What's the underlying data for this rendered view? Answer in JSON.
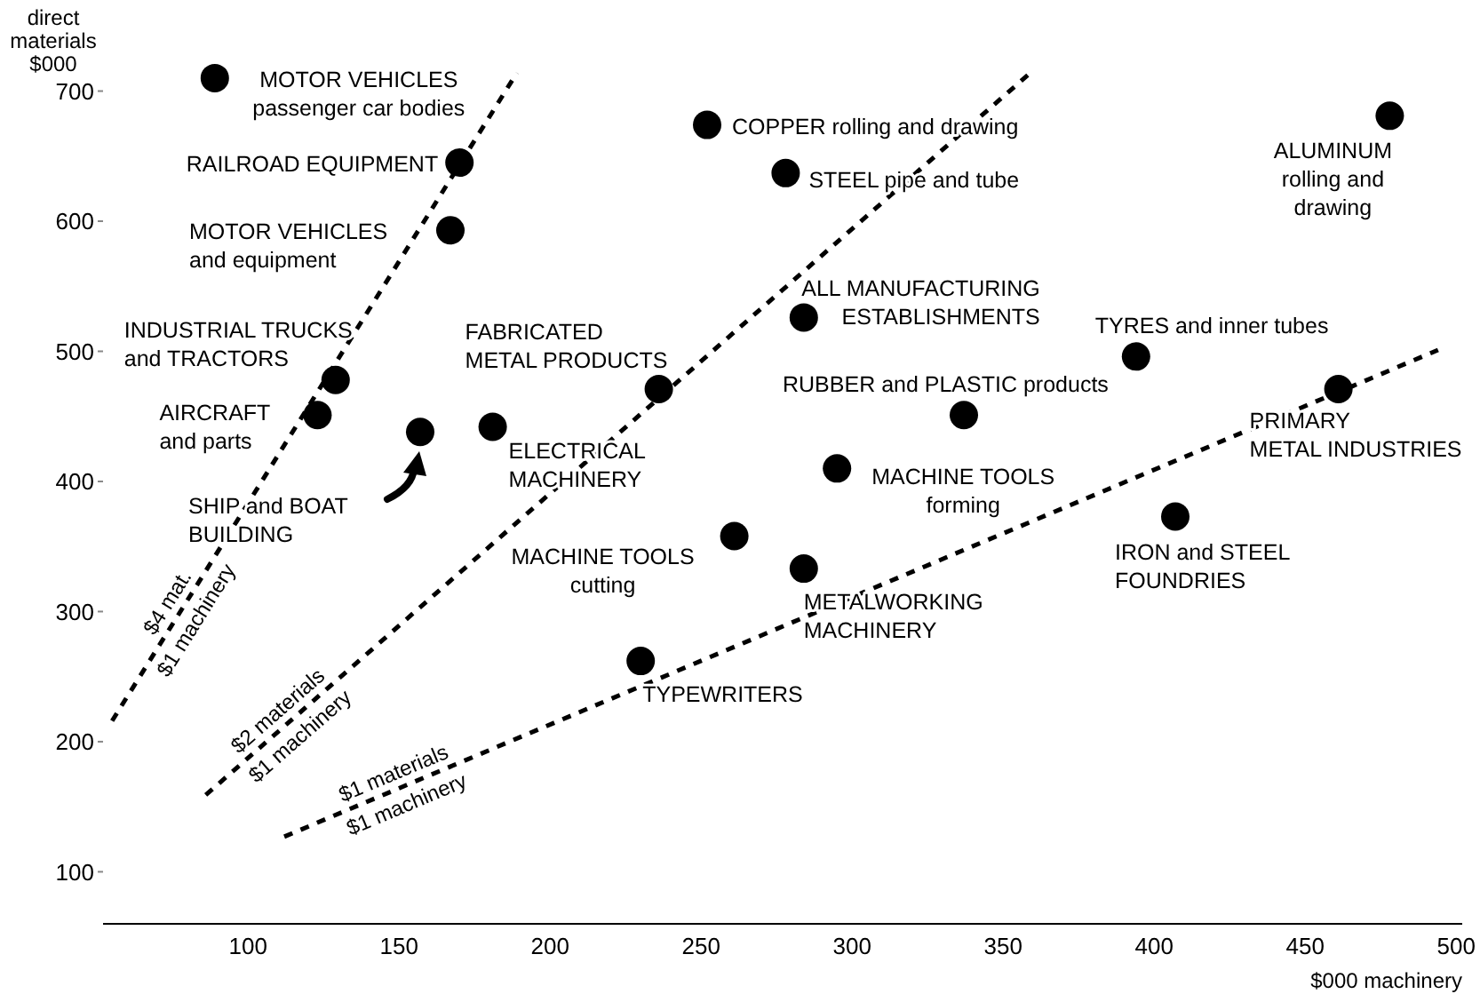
{
  "chart_data": {
    "type": "scatter",
    "xlabel": "$000 machinery",
    "ylabel": "direct materials $000",
    "xlim": [
      52,
      502
    ],
    "ylim": [
      60,
      770
    ],
    "xticks": [
      100,
      150,
      200,
      250,
      300,
      350,
      400,
      450,
      500
    ],
    "yticks": [
      100,
      200,
      300,
      400,
      500,
      600,
      700
    ],
    "grid": false,
    "legend": false,
    "marker": "circle",
    "series": [
      {
        "color": "#000000",
        "x": [
          89,
          170,
          167,
          129,
          123,
          157,
          181,
          236,
          252,
          278,
          284,
          337,
          295,
          261,
          284,
          230,
          394,
          461,
          407,
          478
        ],
        "values": [
          710,
          645,
          593,
          478,
          451,
          438,
          442,
          471,
          674,
          637,
          526,
          451,
          410,
          358,
          333,
          262,
          496,
          471,
          373,
          681
        ]
      },
      {
        "type": "line",
        "name": "$4 mat.\n$1 machinery",
        "color": "#000000",
        "line_style": "dashed",
        "marker": "none",
        "x": [
          55,
          189
        ],
        "values": [
          216,
          714
        ]
      },
      {
        "type": "line",
        "name": "$2 materials\n$1 machinery",
        "color": "#000000",
        "line_style": "dashed",
        "marker": "none",
        "x": [
          86,
          359
        ],
        "values": [
          159,
          714
        ]
      },
      {
        "type": "line",
        "name": "$1 materials\n$1 machinery",
        "color": "#000000",
        "line_style": "dashed",
        "marker": "none",
        "x": [
          112,
          494
        ],
        "values": [
          127,
          501
        ]
      }
    ],
    "annotations": [
      {
        "text": "MOTOR VEHICLES\npassenger car bodies",
        "x": 89,
        "y": 710
      },
      {
        "text": "RAILROAD EQUIPMENT",
        "x": 170,
        "y": 645
      },
      {
        "text": "MOTOR VEHICLES\nand equipment",
        "x": 167,
        "y": 593
      },
      {
        "text": "INDUSTRIAL TRUCKS\nand TRACTORS",
        "x": 129,
        "y": 478
      },
      {
        "text": "AIRCRAFT\nand parts",
        "x": 123,
        "y": 451
      },
      "SHIP and BOAT\nBUILDING",
      {
        "text": "ELECTRICAL\nMACHINERY",
        "x": 181,
        "y": 442
      },
      {
        "text": "FABRICATED\nMETAL PRODUCTS",
        "x": 236,
        "y": 471
      },
      {
        "text": "COPPER rolling and drawing",
        "x": 252,
        "y": 674
      },
      {
        "text": "STEEL pipe and tube",
        "x": 278,
        "y": 637
      },
      {
        "text": "ALL MANUFACTURING\nESTABLISHMENTS",
        "x": 284,
        "y": 526
      },
      {
        "text": "RUBBER and PLASTIC products",
        "x": 337,
        "y": 451
      },
      {
        "text": "MACHINE TOOLS\nforming",
        "x": 295,
        "y": 410
      },
      {
        "text": "MACHINE TOOLS\ncutting",
        "x": 261,
        "y": 358
      },
      {
        "text": "METALWORKING\nMACHINERY",
        "x": 284,
        "y": 333
      },
      {
        "text": "TYPEWRITERS",
        "x": 230,
        "y": 262
      },
      {
        "text": "TYRES and inner tubes",
        "x": 394,
        "y": 496
      },
      {
        "text": "PRIMARY\nMETAL INDUSTRIES",
        "x": 461,
        "y": 471
      },
      {
        "text": "IRON and STEEL\nFOUNDRIES",
        "x": 407,
        "y": 373
      },
      {
        "text": "ALUMINUM\nrolling and\ndrawing",
        "x": 478,
        "y": 681
      }
    ]
  }
}
